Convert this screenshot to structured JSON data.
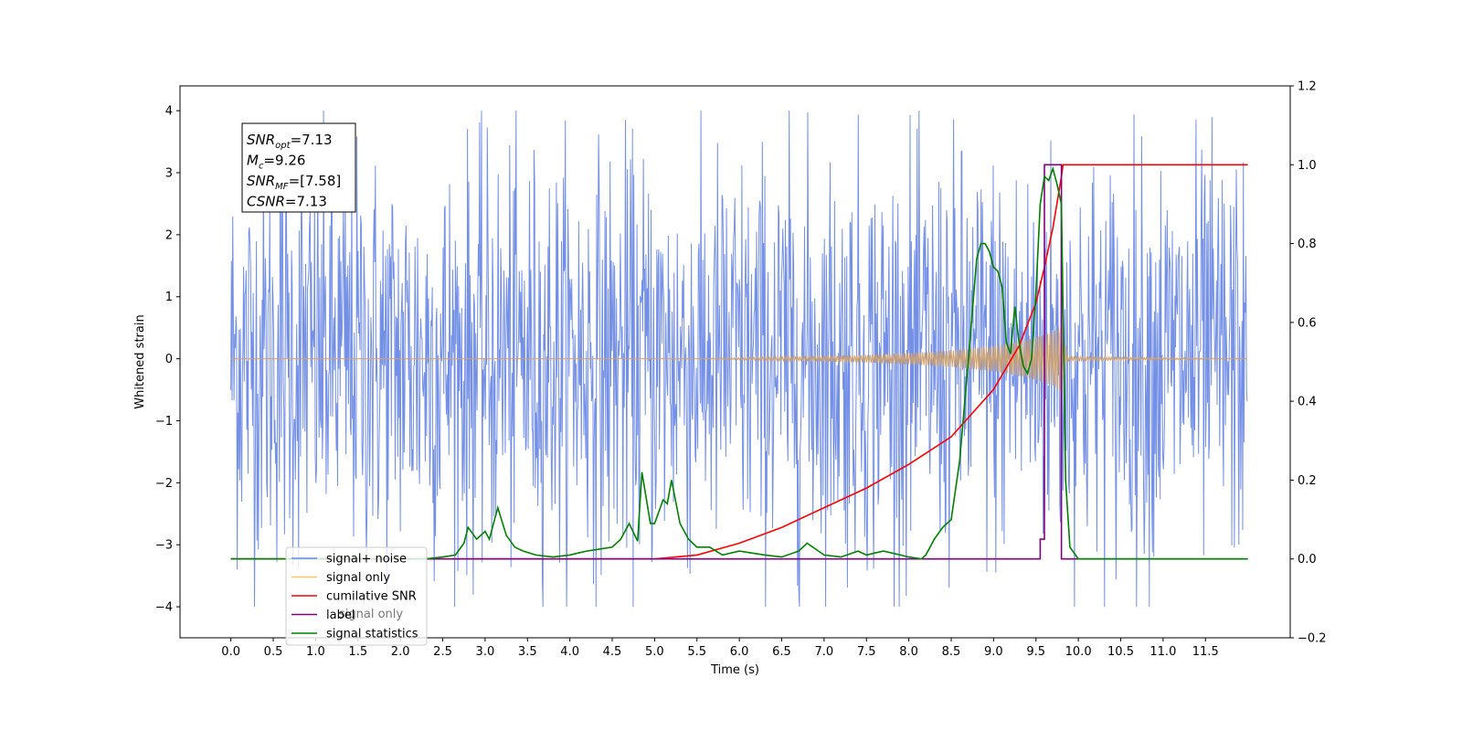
{
  "chart_data": {
    "type": "line",
    "title": "",
    "xlabel": "Time (s)",
    "ylabel": "Whitened strain",
    "y2label": "",
    "xlim": [
      -0.6,
      12.5
    ],
    "ylim": [
      -4.5,
      4.4
    ],
    "y2lim": [
      -0.2,
      1.2
    ],
    "xticks": [
      0.0,
      0.5,
      1.0,
      1.5,
      2.0,
      2.5,
      3.0,
      3.5,
      4.0,
      4.5,
      5.0,
      5.5,
      6.0,
      6.5,
      7.0,
      7.5,
      8.0,
      8.5,
      9.0,
      9.5,
      10.0,
      10.5,
      11.0,
      11.5
    ],
    "xtick_labels": [
      "0.0",
      "0.5",
      "1.0",
      "1.5",
      "2.0",
      "2.5",
      "3.0",
      "3.5",
      "4.0",
      "4.5",
      "5.0",
      "5.5",
      "6.0",
      "6.5",
      "7.0",
      "7.5",
      "8.0",
      "8.5",
      "9.0",
      "9.5",
      "10.0",
      "10.5",
      "11.0",
      "11.5"
    ],
    "yticks": [
      -4,
      -3,
      -2,
      -1,
      0,
      1,
      2,
      3,
      4
    ],
    "ytick_labels": [
      "−4",
      "−3",
      "−2",
      "−1",
      "0",
      "1",
      "2",
      "3",
      "4"
    ],
    "y2ticks": [
      -0.2,
      0.0,
      0.2,
      0.4,
      0.6,
      0.8,
      1.0,
      1.2
    ],
    "y2tick_labels": [
      "−0.2",
      "0.0",
      "0.2",
      "0.4",
      "0.6",
      "0.8",
      "1.0",
      "1.2"
    ],
    "grid": false,
    "legend_position": "lower-left",
    "annotation": {
      "lines": [
        {
          "base": "SNR",
          "sub": "opt",
          "value": "=7.13"
        },
        {
          "base": "M",
          "sub": "c",
          "value": "=9.26"
        },
        {
          "base": "SNR",
          "sub": "MF",
          "value": "=[7.58]"
        },
        {
          "base": "CSNR",
          "sub": "",
          "value": "=7.13"
        }
      ]
    },
    "legend": [
      {
        "label": "signal+ noise",
        "color": "#6d8ae5"
      },
      {
        "label": "signal only",
        "color": "#ffc86b"
      },
      {
        "label": "cumilative SNR",
        "color": "#ff0000"
      },
      {
        "label": "label",
        "color": "#800080"
      },
      {
        "label": "signal statistics",
        "color": "#008000"
      }
    ],
    "legend_occluded_text": "signal only",
    "series": [
      {
        "name": "signal+ noise",
        "axis": "left",
        "color": "#6d8ae5",
        "kind": "noise-envelope",
        "x_range": [
          0.0,
          12.0
        ],
        "typical_amplitude": 2.2,
        "peak_amplitude": 4.0
      },
      {
        "name": "signal only",
        "axis": "left",
        "color": "#cfa26f",
        "kind": "chirp-envelope",
        "x": [
          0.0,
          5.5,
          6.5,
          7.5,
          8.0,
          8.5,
          9.0,
          9.3,
          9.5,
          9.7,
          9.82,
          9.86,
          10.0,
          12.0
        ],
        "amplitude": [
          0.0,
          0.0,
          0.03,
          0.06,
          0.09,
          0.13,
          0.2,
          0.27,
          0.34,
          0.43,
          0.55,
          0.05,
          0.03,
          0.0
        ]
      },
      {
        "name": "cumilative SNR",
        "axis": "right",
        "color": "#ff0000",
        "x": [
          0.0,
          5.0,
          5.5,
          6.0,
          6.5,
          7.0,
          7.5,
          8.0,
          8.5,
          9.0,
          9.3,
          9.5,
          9.6,
          9.7,
          9.8,
          9.82,
          9.86,
          12.0
        ],
        "y": [
          0.0,
          0.0,
          0.01,
          0.04,
          0.08,
          0.13,
          0.18,
          0.24,
          0.31,
          0.43,
          0.54,
          0.65,
          0.74,
          0.84,
          0.97,
          1.0,
          1.0,
          1.0
        ]
      },
      {
        "name": "label",
        "axis": "right",
        "color": "#800080",
        "x": [
          0.0,
          9.55,
          9.55,
          9.6,
          9.6,
          9.8,
          9.8,
          12.0
        ],
        "y": [
          0.0,
          0.0,
          0.05,
          0.05,
          1.0,
          1.0,
          0.0,
          0.0
        ]
      },
      {
        "name": "signal statistics",
        "axis": "right",
        "color": "#008000",
        "x": [
          0.0,
          2.3,
          2.5,
          2.65,
          2.75,
          2.8,
          2.9,
          3.0,
          3.05,
          3.15,
          3.25,
          3.35,
          3.45,
          3.6,
          3.8,
          4.0,
          4.1,
          4.2,
          4.35,
          4.5,
          4.6,
          4.7,
          4.8,
          4.85,
          4.95,
          5.0,
          5.1,
          5.15,
          5.2,
          5.3,
          5.4,
          5.5,
          5.65,
          5.8,
          6.0,
          6.3,
          6.5,
          6.7,
          6.8,
          6.9,
          7.0,
          7.2,
          7.4,
          7.5,
          7.6,
          7.7,
          7.9,
          8.0,
          8.15,
          8.2,
          8.3,
          8.4,
          8.5,
          8.6,
          8.7,
          8.8,
          8.85,
          8.9,
          8.95,
          9.0,
          9.05,
          9.1,
          9.15,
          9.2,
          9.25,
          9.3,
          9.35,
          9.4,
          9.45,
          9.5,
          9.55,
          9.6,
          9.65,
          9.7,
          9.75,
          9.8,
          9.85,
          9.9,
          10.0,
          12.0
        ],
        "y": [
          0.0,
          0.0,
          0.005,
          0.01,
          0.04,
          0.08,
          0.05,
          0.07,
          0.05,
          0.13,
          0.06,
          0.03,
          0.02,
          0.01,
          0.005,
          0.01,
          0.015,
          0.02,
          0.025,
          0.03,
          0.05,
          0.09,
          0.045,
          0.22,
          0.09,
          0.09,
          0.15,
          0.14,
          0.2,
          0.09,
          0.05,
          0.03,
          0.03,
          0.01,
          0.02,
          0.01,
          0.005,
          0.02,
          0.04,
          0.025,
          0.01,
          0.005,
          0.02,
          0.01,
          0.015,
          0.02,
          0.01,
          0.005,
          0.0,
          0.01,
          0.05,
          0.08,
          0.1,
          0.25,
          0.5,
          0.76,
          0.8,
          0.8,
          0.78,
          0.74,
          0.73,
          0.69,
          0.55,
          0.52,
          0.64,
          0.55,
          0.49,
          0.47,
          0.51,
          0.68,
          0.9,
          0.97,
          0.96,
          0.99,
          0.95,
          0.9,
          0.2,
          0.03,
          0.0,
          0.0
        ]
      }
    ]
  }
}
